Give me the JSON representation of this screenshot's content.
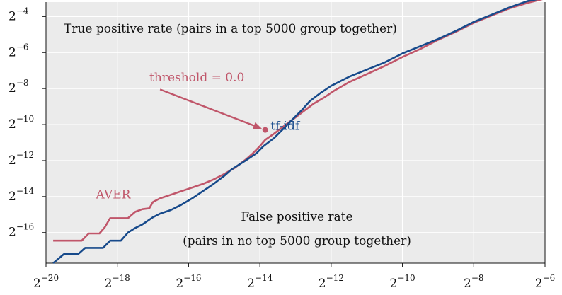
{
  "chart_data": {
    "type": "line",
    "xscale": "log2",
    "yscale": "log2",
    "xlim": [
      -20,
      -6
    ],
    "ylim": [
      -17.7,
      -3.2
    ],
    "x_ticks": [
      -20,
      -18,
      -16,
      -14,
      -12,
      -10,
      -8,
      -6
    ],
    "y_ticks": [
      -16,
      -14,
      -12,
      -10,
      -8,
      -6,
      -4
    ],
    "tick_base": "2",
    "grid": true,
    "background": "#ebebeb",
    "ylabel": "True positive rate (pairs in a top 5000 group together)",
    "xlabel_line1": "False positive rate",
    "xlabel_line2": "(pairs in no top 5000 group together)",
    "series": [
      {
        "name": "AVER",
        "color": "#c0566a",
        "points": [
          [
            -19.8,
            -16.45
          ],
          [
            -19.0,
            -16.45
          ],
          [
            -18.8,
            -16.05
          ],
          [
            -18.5,
            -16.05
          ],
          [
            -18.35,
            -15.7
          ],
          [
            -18.2,
            -15.2
          ],
          [
            -18.0,
            -15.2
          ],
          [
            -17.7,
            -15.2
          ],
          [
            -17.5,
            -14.85
          ],
          [
            -17.3,
            -14.7
          ],
          [
            -17.1,
            -14.65
          ],
          [
            -17.0,
            -14.3
          ],
          [
            -16.8,
            -14.1
          ],
          [
            -16.5,
            -13.9
          ],
          [
            -16.2,
            -13.7
          ],
          [
            -15.9,
            -13.5
          ],
          [
            -15.6,
            -13.3
          ],
          [
            -15.3,
            -13.05
          ],
          [
            -15.0,
            -12.75
          ],
          [
            -14.7,
            -12.4
          ],
          [
            -14.4,
            -11.95
          ],
          [
            -14.2,
            -11.6
          ],
          [
            -14.0,
            -11.2
          ],
          [
            -13.85,
            -10.85
          ],
          [
            -13.6,
            -10.5
          ],
          [
            -13.3,
            -10.05
          ],
          [
            -13.0,
            -9.6
          ],
          [
            -12.8,
            -9.3
          ],
          [
            -12.5,
            -8.85
          ],
          [
            -12.2,
            -8.5
          ],
          [
            -11.9,
            -8.1
          ],
          [
            -11.5,
            -7.65
          ],
          [
            -11.0,
            -7.2
          ],
          [
            -10.5,
            -6.75
          ],
          [
            -10.0,
            -6.25
          ],
          [
            -9.5,
            -5.8
          ],
          [
            -9.0,
            -5.3
          ],
          [
            -8.5,
            -4.85
          ],
          [
            -8.0,
            -4.35
          ],
          [
            -7.5,
            -3.95
          ],
          [
            -7.0,
            -3.55
          ],
          [
            -6.5,
            -3.25
          ],
          [
            -6.0,
            -3.0
          ]
        ]
      },
      {
        "name": "tf-idf",
        "color": "#174a8b",
        "points": [
          [
            -19.8,
            -17.7
          ],
          [
            -19.5,
            -17.2
          ],
          [
            -19.1,
            -17.2
          ],
          [
            -18.9,
            -16.85
          ],
          [
            -18.4,
            -16.85
          ],
          [
            -18.2,
            -16.45
          ],
          [
            -17.9,
            -16.45
          ],
          [
            -17.7,
            -16.0
          ],
          [
            -17.5,
            -15.75
          ],
          [
            -17.3,
            -15.55
          ],
          [
            -17.0,
            -15.15
          ],
          [
            -16.8,
            -14.95
          ],
          [
            -16.5,
            -14.75
          ],
          [
            -16.2,
            -14.45
          ],
          [
            -15.9,
            -14.1
          ],
          [
            -15.6,
            -13.7
          ],
          [
            -15.3,
            -13.3
          ],
          [
            -15.0,
            -12.85
          ],
          [
            -14.8,
            -12.5
          ],
          [
            -14.4,
            -12.0
          ],
          [
            -14.1,
            -11.6
          ],
          [
            -13.9,
            -11.2
          ],
          [
            -13.6,
            -10.75
          ],
          [
            -13.3,
            -10.15
          ],
          [
            -13.0,
            -9.55
          ],
          [
            -12.8,
            -9.15
          ],
          [
            -12.6,
            -8.7
          ],
          [
            -12.3,
            -8.25
          ],
          [
            -12.0,
            -7.85
          ],
          [
            -11.5,
            -7.35
          ],
          [
            -11.0,
            -6.95
          ],
          [
            -10.5,
            -6.55
          ],
          [
            -10.0,
            -6.05
          ],
          [
            -9.5,
            -5.65
          ],
          [
            -9.0,
            -5.25
          ],
          [
            -8.5,
            -4.8
          ],
          [
            -8.0,
            -4.3
          ],
          [
            -7.5,
            -3.9
          ],
          [
            -7.0,
            -3.5
          ],
          [
            -6.5,
            -3.15
          ],
          [
            -6.0,
            -2.95
          ]
        ]
      }
    ],
    "series_labels": [
      {
        "text": "AVER",
        "x": -18.6,
        "y": -14.1,
        "color": "#c0566a"
      },
      {
        "text": "tf-idf",
        "x": -13.7,
        "y": -10.3,
        "color": "#174a8b"
      }
    ],
    "annotation": {
      "text": "threshold = 0.0",
      "color": "#c0566a",
      "text_x": -17.1,
      "text_y": -7.6,
      "arrow_from": [
        -16.8,
        -8.05
      ],
      "point": [
        -13.85,
        -10.3
      ]
    }
  }
}
